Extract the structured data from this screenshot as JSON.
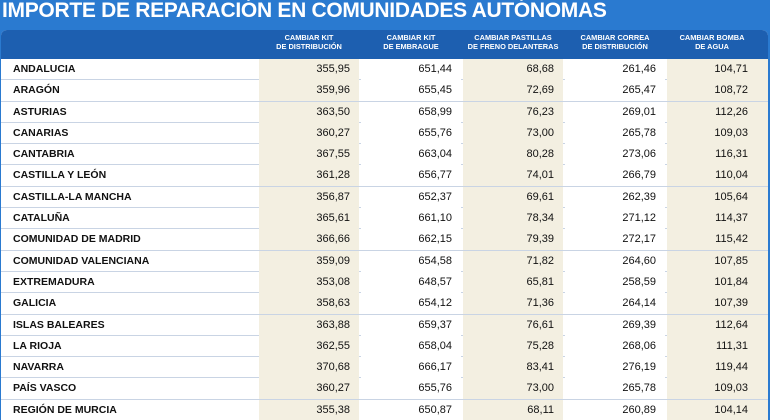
{
  "title": "IMPORTE DE REPARACIÓN EN COMUNIDADES AUTÓNOMAS",
  "columns": [
    {
      "line1": "CAMBIAR KIT",
      "line2": "DE DISTRIBUCIÓN"
    },
    {
      "line1": "CAMBIAR KIT",
      "line2": "DE EMBRAGUE"
    },
    {
      "line1": "CAMBIAR PASTILLAS",
      "line2": "DE FRENO DELANTERAS"
    },
    {
      "line1": "CAMBIAR CORREA",
      "line2": "DE DISTRIBUCIÓN"
    },
    {
      "line1": "CAMBIAR BOMBA",
      "line2": "DE AGUA"
    }
  ],
  "rows": [
    {
      "region": "ANDALUCIA",
      "v": [
        "355,95",
        "651,44",
        "68,68",
        "261,46",
        "104,71"
      ]
    },
    {
      "region": "ARAGÓN",
      "v": [
        "359,96",
        "655,45",
        "72,69",
        "265,47",
        "108,72"
      ]
    },
    {
      "region": "ASTURIAS",
      "v": [
        "363,50",
        "658,99",
        "76,23",
        "269,01",
        "112,26"
      ]
    },
    {
      "region": "CANARIAS",
      "v": [
        "360,27",
        "655,76",
        "73,00",
        "265,78",
        "109,03"
      ]
    },
    {
      "region": "CANTABRIA",
      "v": [
        "367,55",
        "663,04",
        "80,28",
        "273,06",
        "116,31"
      ]
    },
    {
      "region": "CASTILLA Y LEÓN",
      "v": [
        "361,28",
        "656,77",
        "74,01",
        "266,79",
        "110,04"
      ]
    },
    {
      "region": "CASTILLA-LA MANCHA",
      "v": [
        "356,87",
        "652,37",
        "69,61",
        "262,39",
        "105,64"
      ]
    },
    {
      "region": "CATALUÑA",
      "v": [
        "365,61",
        "661,10",
        "78,34",
        "271,12",
        "114,37"
      ]
    },
    {
      "region": "COMUNIDAD DE MADRID",
      "v": [
        "366,66",
        "662,15",
        "79,39",
        "272,17",
        "115,42"
      ]
    },
    {
      "region": "COMUNIDAD VALENCIANA",
      "v": [
        "359,09",
        "654,58",
        "71,82",
        "264,60",
        "107,85"
      ]
    },
    {
      "region": "EXTREMADURA",
      "v": [
        "353,08",
        "648,57",
        "65,81",
        "258,59",
        "101,84"
      ]
    },
    {
      "region": "GALICIA",
      "v": [
        "358,63",
        "654,12",
        "71,36",
        "264,14",
        "107,39"
      ]
    },
    {
      "region": "ISLAS BALEARES",
      "v": [
        "363,88",
        "659,37",
        "76,61",
        "269,39",
        "112,64"
      ]
    },
    {
      "region": "LA RIOJA",
      "v": [
        "362,55",
        "658,04",
        "75,28",
        "268,06",
        "111,31"
      ]
    },
    {
      "region": "NAVARRA",
      "v": [
        "370,68",
        "666,17",
        "83,41",
        "276,19",
        "119,44"
      ]
    },
    {
      "region": "PAÍS VASCO",
      "v": [
        "360,27",
        "655,76",
        "73,00",
        "265,78",
        "109,03"
      ]
    },
    {
      "region": "REGIÓN DE MURCIA",
      "v": [
        "355,38",
        "650,87",
        "68,11",
        "260,89",
        "104,14"
      ]
    }
  ]
}
